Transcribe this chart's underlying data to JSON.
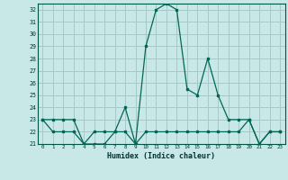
{
  "title": "",
  "xlabel": "Humidex (Indice chaleur)",
  "bg_color": "#c8e8e8",
  "grid_color": "#a8c8c8",
  "line_color": "#006655",
  "ylim": [
    21,
    32.5
  ],
  "xlim": [
    -0.5,
    23.5
  ],
  "yticks": [
    21,
    22,
    23,
    24,
    25,
    26,
    27,
    28,
    29,
    30,
    31,
    32
  ],
  "xticks": [
    0,
    1,
    2,
    3,
    4,
    5,
    6,
    7,
    8,
    9,
    10,
    11,
    12,
    13,
    14,
    15,
    16,
    17,
    18,
    19,
    20,
    21,
    22,
    23
  ],
  "x": [
    0,
    1,
    2,
    3,
    4,
    5,
    6,
    7,
    8,
    9,
    10,
    11,
    12,
    13,
    14,
    15,
    16,
    17,
    18,
    19,
    20,
    21,
    22,
    23
  ],
  "y_main": [
    23,
    23,
    23,
    23,
    21,
    22,
    22,
    22,
    24,
    21,
    29,
    32,
    32.5,
    32,
    25.5,
    25,
    28,
    25,
    23,
    23,
    23,
    21,
    22,
    22
  ],
  "y_low": [
    23,
    22,
    22,
    22,
    21,
    21,
    21,
    22,
    22,
    21,
    22,
    22,
    22,
    22,
    22,
    22,
    22,
    22,
    22,
    22,
    23,
    21,
    22,
    22
  ]
}
